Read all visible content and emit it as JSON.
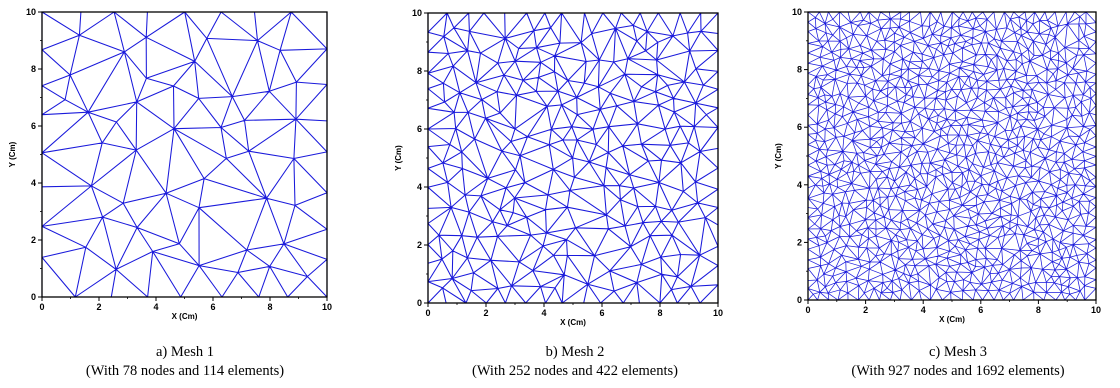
{
  "figures": [
    {
      "x_label": "X (Cm)",
      "y_label": "Y (Cm)",
      "ticks": [
        "0",
        "2",
        "4",
        "6",
        "8",
        "10"
      ],
      "caption_title": "a) Mesh 1",
      "caption_detail": "(With 78 nodes and 114 elements)",
      "nodes": 78,
      "elements": 114
    },
    {
      "x_label": "X (Cm)",
      "y_label": "Y (Cm)",
      "ticks": [
        "0",
        "2",
        "4",
        "6",
        "8",
        "10"
      ],
      "caption_title": "b) Mesh 2",
      "caption_detail": "(With 252 nodes and 422 elements)",
      "nodes": 252,
      "elements": 422
    },
    {
      "x_label": "X (Cm)",
      "y_label": "Y (Cm)",
      "ticks": [
        "0",
        "2",
        "4",
        "6",
        "8",
        "10"
      ],
      "caption_title": "c) Mesh 3",
      "caption_detail": "(With 927 nodes and 1692 elements)",
      "nodes": 927,
      "elements": 1692
    }
  ],
  "colors": {
    "mesh": "#1a1adb",
    "frame": "#000000"
  }
}
